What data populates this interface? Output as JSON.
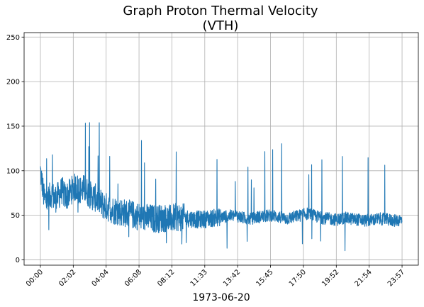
{
  "chart_data": {
    "type": "line",
    "title": [
      "Graph Proton Thermal Velocity",
      "(VTH)"
    ],
    "xlabel": "1973-06-20",
    "ylabel": "",
    "x_tick_labels": [
      "00:00",
      "02:02",
      "04:04",
      "06:08",
      "08:12",
      "11:33",
      "13:42",
      "15:45",
      "17:50",
      "19:52",
      "21:54",
      "23:57"
    ],
    "y_ticks": [
      0,
      50,
      100,
      150,
      200,
      250
    ],
    "ylim": [
      -6,
      255
    ],
    "xlim": [
      -0.045,
      1.045
    ],
    "grid": true,
    "line_color": "#1f77b4",
    "series": [
      {
        "x": [
          0.0,
          0.01,
          0.02,
          0.03,
          0.04,
          0.05,
          0.06,
          0.07,
          0.08,
          0.09,
          0.1,
          0.11,
          0.12,
          0.13,
          0.14,
          0.15,
          0.16,
          0.17,
          0.18,
          0.19,
          0.2,
          0.22,
          0.24,
          0.26,
          0.28,
          0.3,
          0.32,
          0.34,
          0.36,
          0.38,
          0.4,
          0.42,
          0.44,
          0.46,
          0.48,
          0.5,
          0.52,
          0.54,
          0.56,
          0.58,
          0.6,
          0.62,
          0.64,
          0.66,
          0.68,
          0.7,
          0.72,
          0.74,
          0.76,
          0.78,
          0.8,
          0.82,
          0.84,
          0.86,
          0.88,
          0.9,
          0.92,
          0.94,
          0.96,
          0.98,
          1.0
        ],
        "values": [
          100,
          70,
          65,
          75,
          68,
          72,
          78,
          70,
          75,
          80,
          82,
          78,
          80,
          76,
          72,
          70,
          68,
          62,
          60,
          58,
          56,
          54,
          52,
          50,
          48,
          47,
          46,
          47,
          46,
          48,
          47,
          46,
          45,
          46,
          47,
          48,
          49,
          50,
          47,
          46,
          48,
          49,
          50,
          48,
          46,
          48,
          50,
          52,
          49,
          47,
          46,
          45,
          47,
          46,
          45,
          44,
          45,
          46,
          45,
          44,
          45
        ]
      }
    ]
  }
}
